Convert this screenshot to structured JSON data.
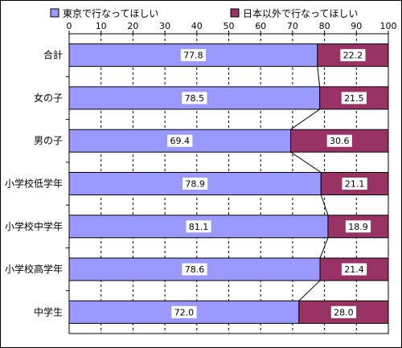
{
  "chart_data": {
    "type": "bar",
    "orientation": "horizontal",
    "stacked": true,
    "percent_stacked": true,
    "categories": [
      "合計",
      "女の子",
      "男の子",
      "小学校低学年",
      "小学校中学年",
      "小学校高学年",
      "中学生"
    ],
    "series": [
      {
        "name": "東京で行なってほしい",
        "color": "#9999ff",
        "values": [
          77.8,
          78.5,
          69.4,
          78.9,
          81.1,
          78.6,
          72.0
        ]
      },
      {
        "name": "日本以外で行なってほしい",
        "color": "#993366",
        "values": [
          22.2,
          21.5,
          30.6,
          21.1,
          18.9,
          21.4,
          28.0
        ]
      }
    ],
    "value_labels": [
      [
        "77.8",
        "78.5",
        "69.4",
        "78.9",
        "81.1",
        "78.6",
        "72.0"
      ],
      [
        "22.2",
        "21.5",
        "30.6",
        "21.1",
        "18.9",
        "21.4",
        "28.0"
      ]
    ],
    "xlim": [
      0,
      100
    ],
    "xticks": [
      0,
      10,
      20,
      30,
      40,
      50,
      60,
      70,
      80,
      90,
      100
    ],
    "grid": true,
    "series_lines": true,
    "legend_position": "top"
  }
}
